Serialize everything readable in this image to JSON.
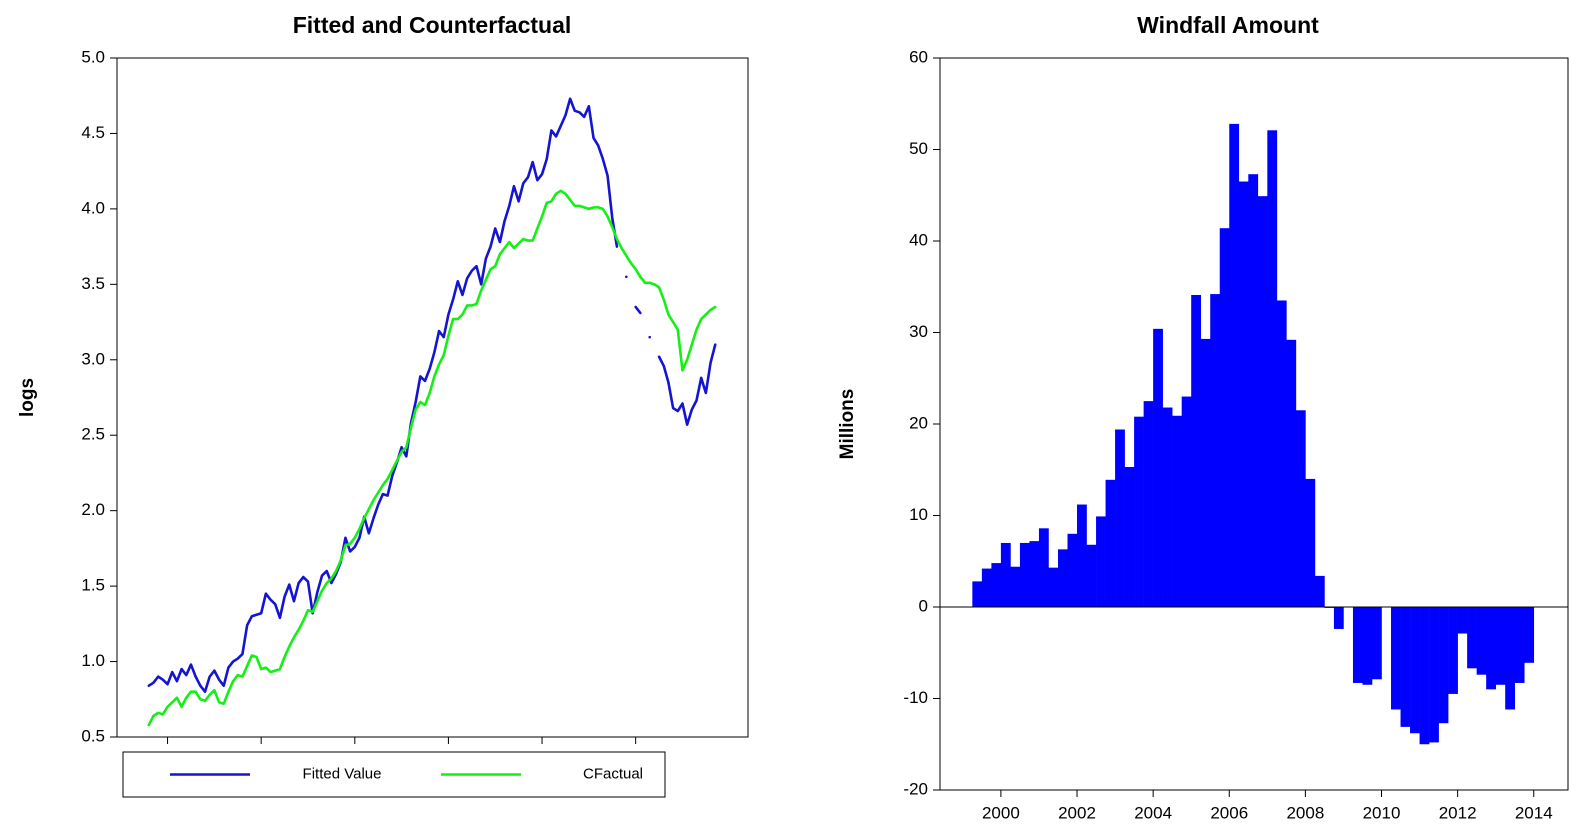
{
  "chart_data": [
    {
      "type": "line",
      "title": "Fitted and Counterfactual",
      "y_label": "logs",
      "x": [
        1984,
        1984.25,
        1984.5,
        1984.75,
        1985,
        1985.25,
        1985.5,
        1985.75,
        1986,
        1986.25,
        1986.5,
        1986.75,
        1987,
        1987.25,
        1987.5,
        1987.75,
        1988,
        1988.25,
        1988.5,
        1988.75,
        1989,
        1989.25,
        1989.5,
        1989.75,
        1990,
        1990.25,
        1990.5,
        1990.75,
        1991,
        1991.25,
        1991.5,
        1991.75,
        1992,
        1992.25,
        1992.5,
        1992.75,
        1993,
        1993.25,
        1993.5,
        1993.75,
        1994,
        1994.25,
        1994.5,
        1994.75,
        1995,
        1995.25,
        1995.5,
        1995.75,
        1996,
        1996.25,
        1996.5,
        1996.75,
        1997,
        1997.25,
        1997.5,
        1997.75,
        1998,
        1998.25,
        1998.5,
        1998.75,
        1999,
        1999.25,
        1999.5,
        1999.75,
        2000,
        2000.25,
        2000.5,
        2000.75,
        2001,
        2001.25,
        2001.5,
        2001.75,
        2002,
        2002.25,
        2002.5,
        2002.75,
        2003,
        2003.25,
        2003.5,
        2003.75,
        2004,
        2004.25,
        2004.5,
        2004.75,
        2005,
        2005.25,
        2005.5,
        2005.75,
        2006,
        2006.25,
        2006.5,
        2006.75,
        2007,
        2007.25,
        2007.5,
        2007.75,
        2008,
        2008.25,
        2008.5,
        2008.75,
        2009,
        2009.25,
        2009.5,
        2009.75,
        2010,
        2010.25,
        2010.5,
        2010.75,
        2011,
        2011.25,
        2011.5,
        2011.75,
        2012,
        2012.25,
        2012.5,
        2012.75,
        2013,
        2013.25,
        2013.5,
        2013.75,
        2014,
        2014.25
      ],
      "series": [
        {
          "name": "Fitted Value",
          "color": "#1414d2",
          "values": [
            0.84,
            0.86,
            0.9,
            0.88,
            0.85,
            0.93,
            0.87,
            0.95,
            0.91,
            0.98,
            0.9,
            0.84,
            0.8,
            0.9,
            0.94,
            0.88,
            0.84,
            0.96,
            1.0,
            1.02,
            1.05,
            1.24,
            1.3,
            1.31,
            1.32,
            1.45,
            1.41,
            1.38,
            1.29,
            1.43,
            1.51,
            1.4,
            1.52,
            1.56,
            1.53,
            1.32,
            1.46,
            1.57,
            1.6,
            1.52,
            1.58,
            1.66,
            1.82,
            1.73,
            1.76,
            1.82,
            1.96,
            1.85,
            1.95,
            2.04,
            2.11,
            2.1,
            2.23,
            2.32,
            2.42,
            2.36,
            2.58,
            2.72,
            2.89,
            2.86,
            2.94,
            3.05,
            3.19,
            3.15,
            3.3,
            3.4,
            3.52,
            3.43,
            3.54,
            3.59,
            3.62,
            3.5,
            3.67,
            3.75,
            3.87,
            3.78,
            3.92,
            4.02,
            4.15,
            4.05,
            4.17,
            4.21,
            4.31,
            4.19,
            4.23,
            4.33,
            4.52,
            4.48,
            4.55,
            4.62,
            4.73,
            4.65,
            4.64,
            4.61,
            4.68,
            4.47,
            4.42,
            4.33,
            4.22,
            3.94,
            3.75,
            null,
            3.55,
            null,
            3.35,
            3.31,
            null,
            3.15,
            null,
            3.02,
            2.96,
            2.85,
            2.68,
            2.66,
            2.71,
            2.57,
            2.67,
            2.73,
            2.88,
            2.78,
            2.98,
            3.1
          ]
        },
        {
          "name": "CFactual",
          "color": "#14f014",
          "values": [
            0.58,
            0.64,
            0.66,
            0.65,
            0.7,
            0.73,
            0.76,
            0.7,
            0.76,
            0.8,
            0.8,
            0.75,
            0.74,
            0.78,
            0.81,
            0.73,
            0.72,
            0.8,
            0.87,
            0.91,
            0.9,
            0.97,
            1.04,
            1.03,
            0.95,
            0.96,
            0.93,
            0.94,
            0.95,
            1.03,
            1.1,
            1.16,
            1.21,
            1.27,
            1.34,
            1.33,
            1.4,
            1.47,
            1.52,
            1.55,
            1.6,
            1.67,
            1.77,
            1.78,
            1.82,
            1.88,
            1.95,
            2.01,
            2.07,
            2.12,
            2.17,
            2.21,
            2.27,
            2.33,
            2.39,
            2.42,
            2.55,
            2.67,
            2.72,
            2.7,
            2.78,
            2.89,
            2.97,
            3.03,
            3.16,
            3.27,
            3.27,
            3.3,
            3.36,
            3.36,
            3.37,
            3.46,
            3.53,
            3.6,
            3.62,
            3.7,
            3.74,
            3.78,
            3.74,
            3.77,
            3.8,
            3.79,
            3.79,
            3.87,
            3.95,
            4.04,
            4.05,
            4.1,
            4.12,
            4.1,
            4.06,
            4.02,
            4.02,
            4.01,
            4.0,
            4.01,
            4.01,
            4.0,
            3.95,
            3.88,
            3.8,
            3.74,
            3.69,
            3.64,
            3.6,
            3.55,
            3.51,
            3.51,
            3.5,
            3.48,
            3.4,
            3.3,
            3.25,
            3.2,
            2.93,
            3.0,
            3.1,
            3.2,
            3.27,
            3.3,
            3.33,
            3.35
          ]
        }
      ],
      "xlim": [
        1982.3,
        2016
      ],
      "ylim": [
        0.5,
        5.0
      ],
      "xticks": [
        1985,
        1990,
        1995,
        2000,
        2005,
        2010
      ],
      "yticks": [
        0.5,
        {
          "value": 1,
          "label": "1.0"
        },
        1.5,
        {
          "value": 2,
          "label": "2.0"
        },
        2.5,
        {
          "value": 3,
          "label": "3.0"
        },
        3.5,
        {
          "value": 4,
          "label": "4.0"
        },
        4.5,
        {
          "value": 5,
          "label": "5.0"
        }
      ],
      "legend": "bottom"
    },
    {
      "type": "bar",
      "title": "Windfall Amount",
      "y_label": "Millions",
      "color": "#0000ff",
      "x": [
        1999.75,
        2000,
        2000.25,
        2000.5,
        2000.75,
        2001,
        2001.25,
        2001.5,
        2001.75,
        2002,
        2002.25,
        2002.5,
        2002.75,
        2003,
        2003.25,
        2003.5,
        2003.75,
        2004,
        2004.25,
        2004.5,
        2004.75,
        2005,
        2005.25,
        2005.5,
        2005.75,
        2006,
        2006.25,
        2006.5,
        2006.75,
        2007,
        2007.25,
        2007.5,
        2007.75,
        2008,
        2008.25,
        2008.5,
        2008.75,
        2009,
        2009.25,
        2009.5,
        2009.75,
        2010,
        2010.25,
        2010.5,
        2010.75,
        2011,
        2011.25,
        2011.5,
        2011.75,
        2012,
        2012.25,
        2012.5,
        2012.75,
        2013,
        2013.25,
        2013.5,
        2013.75,
        2014,
        2014.25
      ],
      "values": [
        2.8,
        4.2,
        4.8,
        7.0,
        4.4,
        7.0,
        7.2,
        8.6,
        4.3,
        6.3,
        8.0,
        11.2,
        6.8,
        9.9,
        13.9,
        19.4,
        15.3,
        20.8,
        22.5,
        30.4,
        21.8,
        20.9,
        23.0,
        34.1,
        29.3,
        34.2,
        41.4,
        52.8,
        46.5,
        47.3,
        44.9,
        52.1,
        33.5,
        29.2,
        21.5,
        14.0,
        3.4,
        -0.1,
        -2.4,
        null,
        -8.3,
        -8.5,
        -7.9,
        null,
        -11.2,
        -13.1,
        -13.8,
        -15.0,
        -14.8,
        -12.7,
        -9.5,
        -2.9,
        -6.7,
        -7.4,
        -9.0,
        -8.5,
        -11.2,
        -8.3,
        -6.1
      ],
      "xlim": [
        1998.9,
        2015.4
      ],
      "ylim": [
        -20,
        60
      ],
      "xticks": [
        {
          "value": 2000.5,
          "label": "2000"
        },
        {
          "value": 2002.5,
          "label": "2002"
        },
        {
          "value": 2004.5,
          "label": "2004"
        },
        {
          "value": 2006.5,
          "label": "2006"
        },
        {
          "value": 2008.5,
          "label": "2008"
        },
        {
          "value": 2010.5,
          "label": "2010"
        },
        {
          "value": 2012.5,
          "label": "2012"
        },
        {
          "value": 2014.5,
          "label": "2014"
        }
      ],
      "yticks": [
        -20,
        -10,
        0,
        10,
        20,
        30,
        40,
        50,
        60
      ]
    }
  ]
}
